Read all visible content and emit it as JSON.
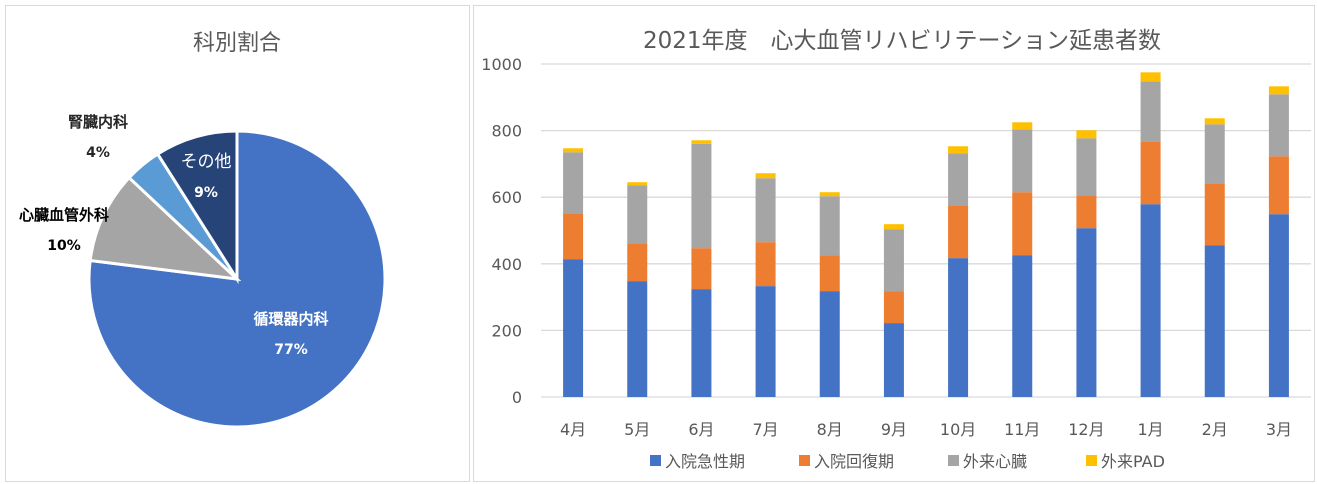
{
  "chart_data": [
    {
      "type": "pie",
      "title": "科別割合",
      "slices": [
        {
          "label": "循環器内科",
          "value": 77,
          "display": "77%",
          "color": "#4472C4"
        },
        {
          "label": "心臓血管外科",
          "value": 10,
          "display": "10%",
          "color": "#A5A5A5"
        },
        {
          "label": "腎臓内科",
          "value": 4,
          "display": "4%",
          "color": "#5B9BD5"
        },
        {
          "label": "その他",
          "value": 9,
          "display": "9%",
          "color": "#264478"
        }
      ]
    },
    {
      "type": "bar",
      "stacked": true,
      "title": "2021年度　心大血管リハビリテーション延患者数",
      "categories": [
        "4月",
        "5月",
        "6月",
        "7月",
        "8月",
        "9月",
        "10月",
        "11月",
        "12月",
        "1月",
        "2月",
        "3月"
      ],
      "ylim": [
        0,
        1000
      ],
      "yticks": [
        0,
        200,
        400,
        600,
        800,
        1000
      ],
      "grid": true,
      "legend": "bottom",
      "series": [
        {
          "name": "入院急性期",
          "color": "#4472C4",
          "values": [
            414,
            348,
            324,
            333,
            318,
            222,
            417,
            426,
            507,
            579,
            456,
            549
          ]
        },
        {
          "name": "入院回復期",
          "color": "#ED7D31",
          "values": [
            138,
            114,
            123,
            132,
            108,
            96,
            159,
            189,
            99,
            189,
            186,
            174
          ]
        },
        {
          "name": "外来心臓",
          "color": "#A5A5A5",
          "values": [
            183,
            174,
            313,
            192,
            177,
            186,
            156,
            189,
            171,
            180,
            177,
            186
          ]
        },
        {
          "name": "外来PAD",
          "color": "#FFC000",
          "values": [
            12,
            9,
            11,
            15,
            12,
            15,
            21,
            21,
            24,
            27,
            18,
            24
          ]
        }
      ]
    }
  ]
}
